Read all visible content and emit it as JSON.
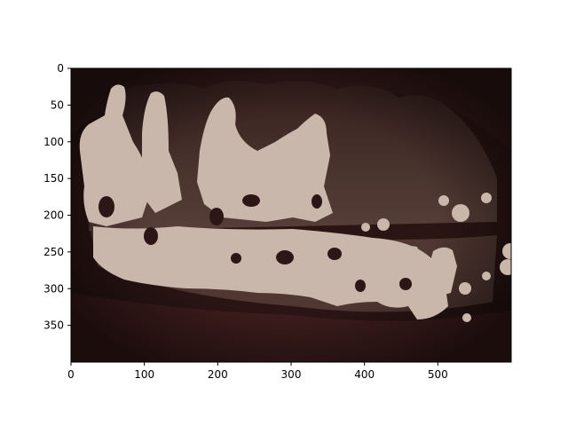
{
  "figure": {
    "x_ticks": [
      0,
      100,
      200,
      300,
      400,
      500
    ],
    "y_ticks": [
      0,
      50,
      100,
      150,
      200,
      250,
      300,
      350
    ],
    "x_range": [
      0,
      600
    ],
    "y_range": [
      0,
      400
    ],
    "y_axis_inverted": true,
    "colors": {
      "background": "#ffffff",
      "image_dark": "#2a1514",
      "gum": "#3a1c1a",
      "tooth_shadow": "#5a4038",
      "mask": "#c8b7aa",
      "axis": "#000000"
    }
  }
}
